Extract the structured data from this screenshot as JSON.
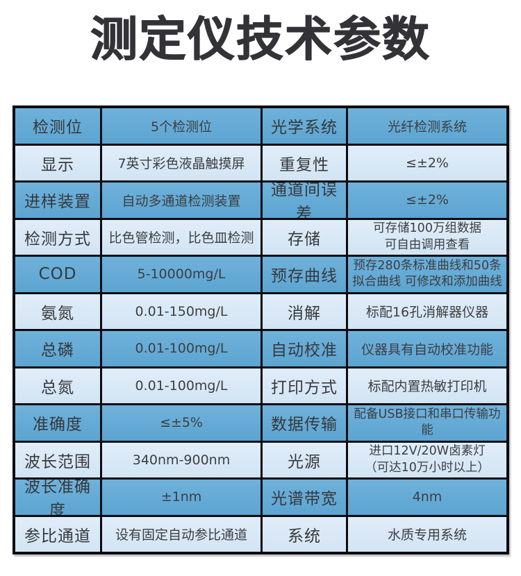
{
  "page": {
    "title": "测定仪技术参数"
  },
  "colors": {
    "background": "#ffffff",
    "title_text": "#333337",
    "border": "#0c0c12",
    "row_dark": "#5ca4d1",
    "row_dark_top": "#6fb2db",
    "row_light": "#d2e4f3",
    "row_light_top": "#e1edf9",
    "label_text": "#36383c",
    "value_text": "#3c3e42"
  },
  "spec_table": {
    "rows": [
      [
        "检测位",
        "5个检测位",
        "光学系统",
        "光纤检测系统"
      ],
      [
        "显示",
        "7英寸彩色液晶触摸屏",
        "重复性",
        "≤±2%"
      ],
      [
        "进样装置",
        "自动多通道检测装置",
        "通道间误差",
        "≤±2%"
      ],
      [
        "检测方式",
        "比色管检测，比色皿检测",
        "存储",
        "可存储100万组数据\n可自由调用查看"
      ],
      [
        "COD",
        "5-10000mg/L",
        "预存曲线",
        "预存280条标准曲线和50条\n拟合曲线 可修改和添加曲线"
      ],
      [
        "氨氮",
        "0.01-150mg/L",
        "消解",
        "标配16孔消解器仪器"
      ],
      [
        "总磷",
        "0.01-100mg/L",
        "自动校准",
        "仪器具有自动校准功能"
      ],
      [
        "总氮",
        "0.01-100mg/L",
        "打印方式",
        "标配内置热敏打印机"
      ],
      [
        "准确度",
        "≤±5%",
        "数据传输",
        "配备USB接口和串口传输功能"
      ],
      [
        "波长范围",
        "340nm-900nm",
        "光源",
        "进口12V/20W卤素灯\n（可达10万小时以上）"
      ],
      [
        "波长准确度",
        "±1nm",
        "光谱带宽",
        "4nm"
      ],
      [
        "参比通道",
        "设有固定自动参比通道",
        "系统",
        "水质专用系统"
      ]
    ]
  }
}
